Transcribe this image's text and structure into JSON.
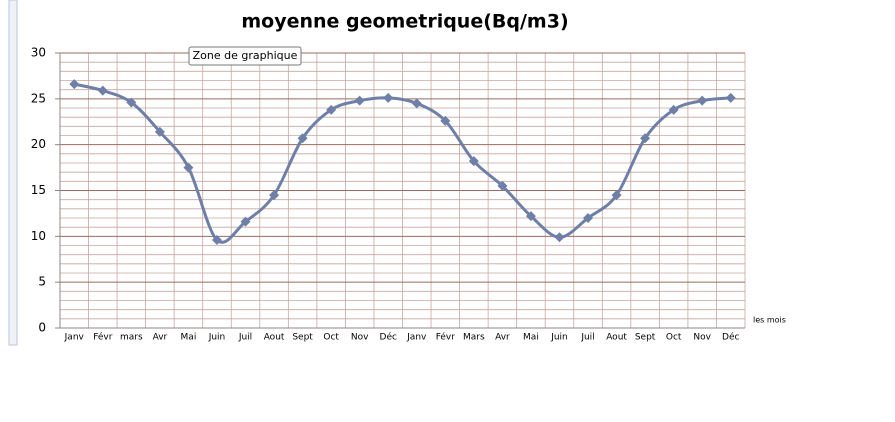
{
  "chart_data": {
    "type": "line",
    "title": "moyenne geometrique(Bq/m3)",
    "tooltip": "Zone de graphique",
    "x_label": "les mois",
    "categories": [
      "Janv",
      "Févr",
      "mars",
      "Avr",
      "Mai",
      "Juin",
      "Juil",
      "Aout",
      "Sept",
      "Oct",
      "Nov",
      "Déc",
      "Janv",
      "Févr",
      "Mars",
      "Avr",
      "Mai",
      "Juin",
      "Juil",
      "Aout",
      "Sept",
      "Oct",
      "Nov",
      "Déc"
    ],
    "series": [
      {
        "name": "moyenne geometrique",
        "color": "#6e7fa8",
        "values": [
          26.6,
          25.9,
          24.6,
          21.4,
          17.5,
          9.6,
          11.6,
          14.5,
          20.7,
          23.8,
          24.8,
          25.1,
          24.5,
          22.6,
          18.2,
          15.5,
          12.2,
          9.9,
          12.0,
          14.5,
          20.7,
          23.8,
          24.8,
          25.1
        ]
      }
    ],
    "ylim": [
      0,
      30
    ],
    "yticks": [
      0,
      5,
      10,
      15,
      20,
      25,
      30
    ],
    "grid": true,
    "smooth": true
  }
}
